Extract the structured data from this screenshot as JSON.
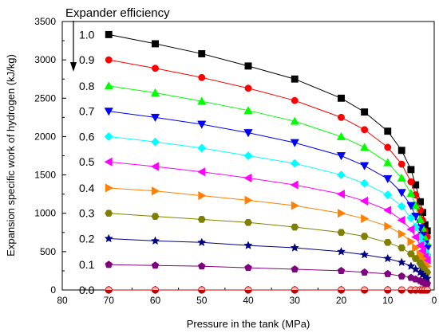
{
  "chart_data": {
    "type": "line",
    "title": "",
    "xlabel": "Pressure in the tank (MPa)",
    "ylabel": "Expansion specific work of hydrogen (kJ/kg)",
    "xlim": [
      80,
      0
    ],
    "ylim": [
      0,
      3500
    ],
    "x_reversed": true,
    "xticks": [
      80,
      70,
      60,
      50,
      40,
      30,
      20,
      10,
      0
    ],
    "yticks": [
      0,
      500,
      1000,
      1500,
      2000,
      2500,
      3000,
      3500
    ],
    "grid": false,
    "annotation": "Expander efficiency",
    "x": [
      70,
      60,
      50,
      40,
      30,
      20,
      15,
      10,
      7,
      5,
      4,
      3,
      2.5,
      2,
      1.5
    ],
    "series": [
      {
        "name": "1.0",
        "marker": "square",
        "color": "#000000",
        "values": [
          3330,
          3210,
          3080,
          2920,
          2750,
          2500,
          2320,
          2070,
          1820,
          1570,
          1370,
          1150,
          1010,
          850,
          770
        ]
      },
      {
        "name": "0.9",
        "marker": "circle",
        "color": "#ff0000",
        "values": [
          3000,
          2890,
          2770,
          2630,
          2470,
          2250,
          2090,
          1860,
          1640,
          1410,
          1240,
          1040,
          910,
          770,
          690
        ]
      },
      {
        "name": "0.8",
        "marker": "triangle-up",
        "color": "#00ff00",
        "values": [
          2660,
          2570,
          2460,
          2340,
          2200,
          2000,
          1860,
          1660,
          1460,
          1260,
          1100,
          920,
          810,
          680,
          610
        ]
      },
      {
        "name": "0.7",
        "marker": "triangle-down",
        "color": "#0000ff",
        "values": [
          2330,
          2250,
          2160,
          2050,
          1920,
          1750,
          1620,
          1450,
          1270,
          1100,
          960,
          810,
          710,
          600,
          540
        ]
      },
      {
        "name": "0.6",
        "marker": "diamond",
        "color": "#00ffff",
        "values": [
          2000,
          1930,
          1850,
          1750,
          1650,
          1500,
          1390,
          1240,
          1090,
          940,
          820,
          690,
          610,
          510,
          460
        ]
      },
      {
        "name": "0.5",
        "marker": "triangle-left",
        "color": "#ff00ff",
        "values": [
          1670,
          1610,
          1540,
          1460,
          1370,
          1250,
          1160,
          1040,
          910,
          790,
          690,
          580,
          510,
          430,
          390
        ]
      },
      {
        "name": "0.4",
        "marker": "triangle-right",
        "color": "#ff8000",
        "values": [
          1330,
          1290,
          1230,
          1170,
          1100,
          1000,
          930,
          830,
          730,
          630,
          550,
          460,
          410,
          340,
          310
        ]
      },
      {
        "name": "0.3",
        "marker": "hexagon",
        "color": "#808000",
        "values": [
          1000,
          960,
          920,
          880,
          820,
          750,
          700,
          620,
          550,
          470,
          410,
          350,
          300,
          260,
          230
        ]
      },
      {
        "name": "0.2",
        "marker": "star",
        "color": "#000080",
        "values": [
          670,
          640,
          620,
          580,
          550,
          500,
          460,
          410,
          360,
          310,
          270,
          230,
          200,
          170,
          150
        ]
      },
      {
        "name": "0.1",
        "marker": "pentagon",
        "color": "#800080",
        "values": [
          330,
          320,
          310,
          290,
          270,
          250,
          230,
          210,
          180,
          160,
          140,
          120,
          100,
          90,
          80
        ]
      },
      {
        "name": "0.0",
        "marker": "circle-half",
        "color": "#c00000",
        "values": [
          0,
          0,
          0,
          0,
          0,
          0,
          0,
          0,
          0,
          0,
          0,
          0,
          0,
          0,
          0
        ]
      }
    ]
  }
}
